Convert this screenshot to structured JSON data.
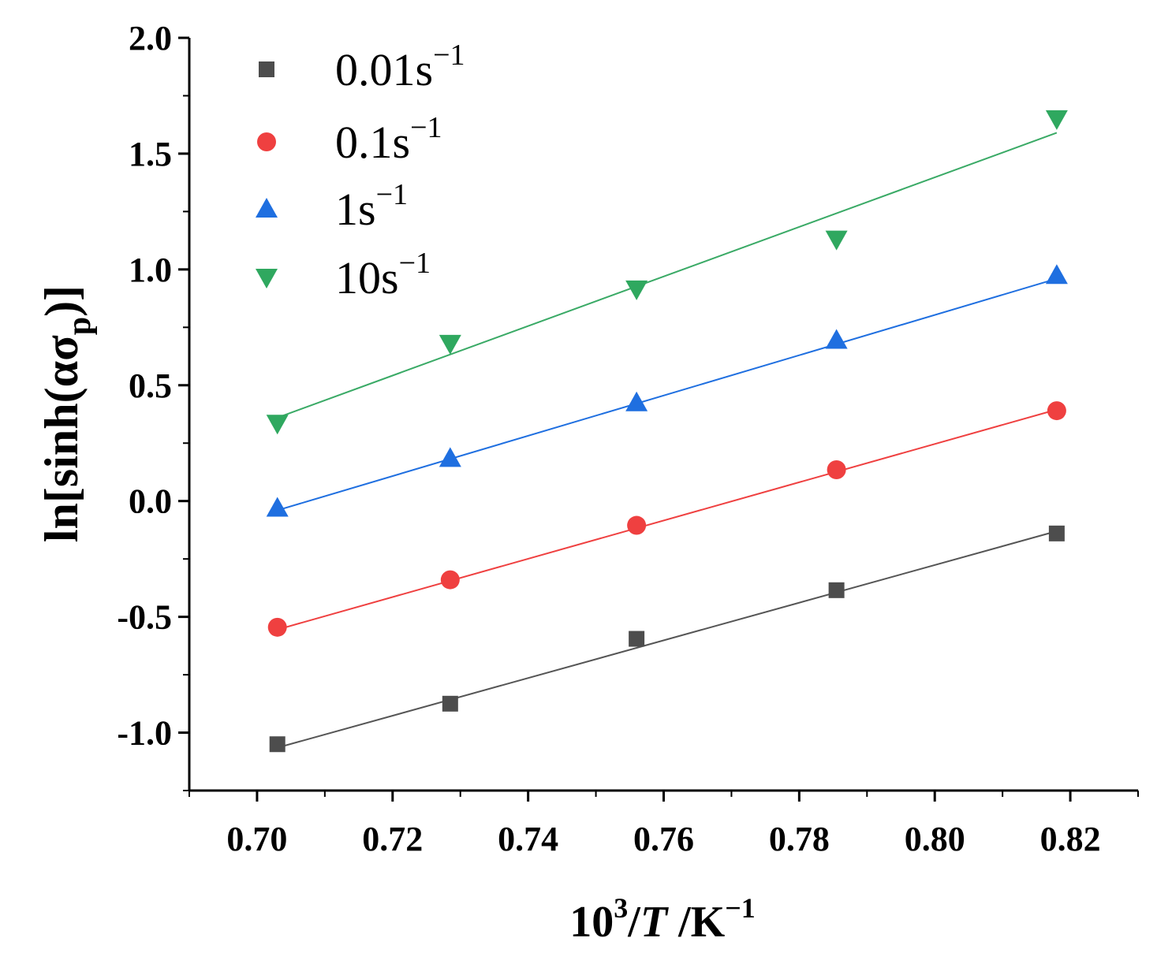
{
  "chart_data": {
    "type": "scatter",
    "xlabel": {
      "base": "10",
      "sup": "3",
      "mid": "/",
      "italic": "T",
      "unit": " /K",
      "unit_sup": "−1"
    },
    "ylabel": {
      "prefix": "ln[sinh(ασ",
      "sub": "p",
      "suffix": ")]"
    },
    "xlim": [
      0.69,
      0.83
    ],
    "ylim": [
      -1.25,
      2.0
    ],
    "x_ticks": [
      {
        "value": 0.7,
        "label": "0.70"
      },
      {
        "value": 0.72,
        "label": "0.72"
      },
      {
        "value": 0.74,
        "label": "0.74"
      },
      {
        "value": 0.76,
        "label": "0.76"
      },
      {
        "value": 0.78,
        "label": "0.78"
      },
      {
        "value": 0.8,
        "label": "0.80"
      },
      {
        "value": 0.82,
        "label": "0.82"
      }
    ],
    "y_ticks": [
      {
        "value": -1.0,
        "label": "-1.0"
      },
      {
        "value": -0.5,
        "label": "-0.5"
      },
      {
        "value": 0.0,
        "label": "0.0"
      },
      {
        "value": 0.5,
        "label": "0.5"
      },
      {
        "value": 1.0,
        "label": "1.0"
      },
      {
        "value": 1.5,
        "label": "1.5"
      },
      {
        "value": 2.0,
        "label": "2.0"
      }
    ],
    "legend_position": "top-left",
    "series": [
      {
        "name": "0.01s−1",
        "label_base": "0.01s",
        "label_sup": "−1",
        "marker": "square",
        "color": "#4d4d4d",
        "line_color": "#555555",
        "x": [
          0.703,
          0.7285,
          0.756,
          0.7855,
          0.818
        ],
        "y": [
          -1.05,
          -0.875,
          -0.595,
          -0.385,
          -0.14
        ],
        "fit": {
          "x": [
            0.703,
            0.818
          ],
          "y": [
            -1.065,
            -0.13
          ]
        }
      },
      {
        "name": "0.1s−1",
        "label_base": "0.1s",
        "label_sup": "−1",
        "marker": "circle",
        "color": "#ef4040",
        "line_color": "#ef4040",
        "x": [
          0.703,
          0.7285,
          0.756,
          0.7855,
          0.818
        ],
        "y": [
          -0.545,
          -0.34,
          -0.105,
          0.135,
          0.39
        ],
        "fit": {
          "x": [
            0.703,
            0.818
          ],
          "y": [
            -0.555,
            0.395
          ]
        }
      },
      {
        "name": "1s−1",
        "label_base": "1s",
        "label_sup": "−1",
        "marker": "triangle-up",
        "color": "#1f6fe0",
        "line_color": "#1f6fe0",
        "x": [
          0.703,
          0.7285,
          0.756,
          0.7855,
          0.818
        ],
        "y": [
          -0.03,
          0.185,
          0.425,
          0.695,
          0.975
        ],
        "fit": {
          "x": [
            0.703,
            0.818
          ],
          "y": [
            -0.04,
            0.96
          ]
        }
      },
      {
        "name": "10s−1",
        "label_base": "10s",
        "label_sup": "−1",
        "marker": "triangle-down",
        "color": "#2fa85f",
        "line_color": "#3aaa66",
        "x": [
          0.703,
          0.7285,
          0.756,
          0.7855,
          0.818
        ],
        "y": [
          0.335,
          0.68,
          0.915,
          1.13,
          1.65
        ],
        "fit": {
          "x": [
            0.703,
            0.818
          ],
          "y": [
            0.36,
            1.59
          ]
        }
      }
    ]
  }
}
